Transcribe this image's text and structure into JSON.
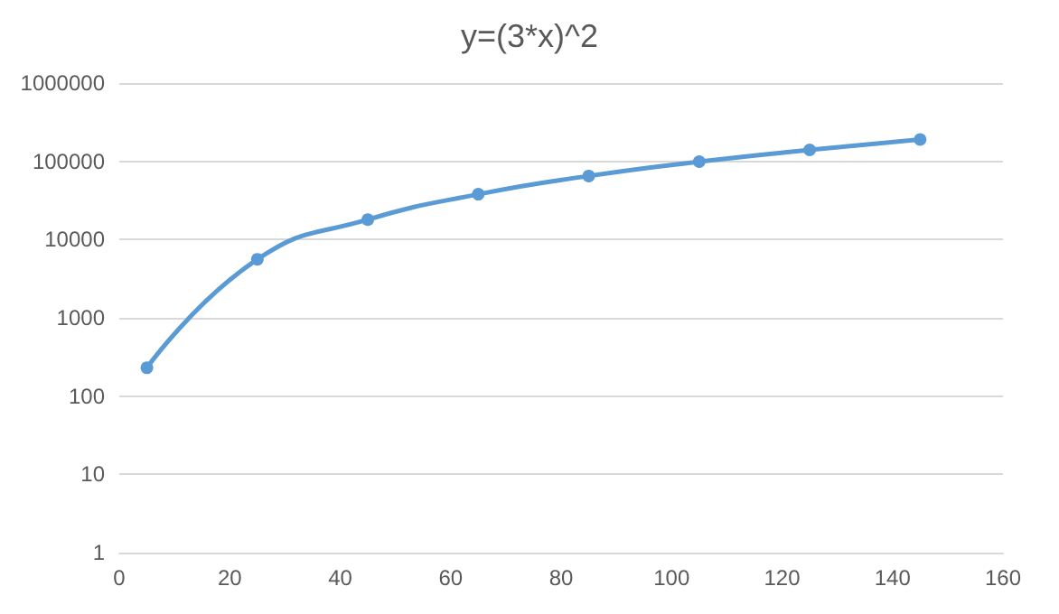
{
  "chart_data": {
    "type": "line",
    "title": "y=(3*x)^2",
    "x": [
      5,
      25,
      45,
      65,
      85,
      105,
      125,
      145
    ],
    "series": [
      {
        "color": "#5b9bd5",
        "values": [
          230,
          5600,
          18000,
          38000,
          65000,
          99000,
          140000,
          190000
        ]
      }
    ],
    "xlim": [
      0,
      160
    ],
    "xticks": [
      0,
      20,
      40,
      60,
      80,
      100,
      120,
      140,
      160
    ],
    "ylim": [
      1,
      1000000
    ],
    "yticks": [
      1,
      10,
      100,
      1000,
      10000,
      100000,
      1000000
    ],
    "log": "y",
    "grid": "y",
    "marker": "circle",
    "line_style": "solid"
  }
}
